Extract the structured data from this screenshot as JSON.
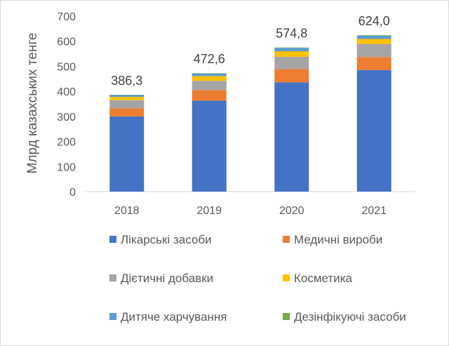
{
  "chart_data": {
    "type": "bar",
    "stacked": true,
    "title": "",
    "xlabel": "",
    "ylabel": "Млрд казахських тенге",
    "ylim": [
      0,
      700
    ],
    "yticks": [
      0,
      100,
      200,
      300,
      400,
      500,
      600,
      700
    ],
    "grid": false,
    "legend_position": "bottom",
    "categories": [
      "2018",
      "2019",
      "2020",
      "2021"
    ],
    "totals_labels": [
      "386,3",
      "472,6",
      "574,8",
      "624,0"
    ],
    "series": [
      {
        "name": "Лікарські засоби",
        "color": "#4472c4",
        "values": [
          300,
          363,
          436,
          485
        ]
      },
      {
        "name": "Медичні вироби",
        "color": "#ed7d31",
        "values": [
          32,
          42,
          53,
          52
        ]
      },
      {
        "name": "Дієтичні добавки",
        "color": "#a5a5a5",
        "values": [
          33,
          37,
          49,
          52
        ]
      },
      {
        "name": "Косметика",
        "color": "#ffc000",
        "values": [
          13,
          19,
          22,
          20
        ]
      },
      {
        "name": "Дитяче харчування",
        "color": "#5b9bd5",
        "values": [
          7,
          10,
          13,
          13
        ]
      },
      {
        "name": "Дезінфікуючі засоби",
        "color": "#70ad47",
        "values": [
          1.3,
          1.6,
          1.8,
          2.0
        ]
      }
    ]
  }
}
